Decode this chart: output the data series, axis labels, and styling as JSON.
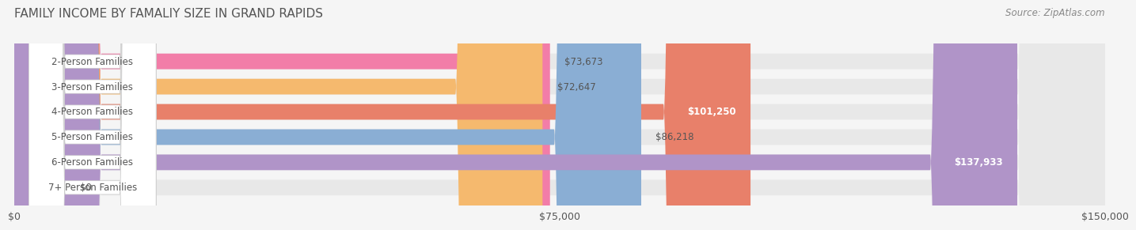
{
  "title": "FAMILY INCOME BY FAMALIY SIZE IN GRAND RAPIDS",
  "source": "Source: ZipAtlas.com",
  "categories": [
    "2-Person Families",
    "3-Person Families",
    "4-Person Families",
    "5-Person Families",
    "6-Person Families",
    "7+ Person Families"
  ],
  "values": [
    73673,
    72647,
    101250,
    86218,
    137933,
    0
  ],
  "bar_colors": [
    "#f27da8",
    "#f5b96e",
    "#e8806a",
    "#8aaed4",
    "#b094c8",
    "#7acfcf"
  ],
  "label_colors": [
    "#555555",
    "#555555",
    "#ffffff",
    "#555555",
    "#ffffff",
    "#555555"
  ],
  "value_labels": [
    "$73,673",
    "$72,647",
    "$101,250",
    "$86,218",
    "$137,933",
    "$0"
  ],
  "x_max": 150000,
  "x_ticks": [
    0,
    75000,
    150000
  ],
  "x_tick_labels": [
    "$0",
    "$75,000",
    "$150,000"
  ],
  "background_color": "#f5f5f5",
  "bar_bg_color": "#e8e8e8",
  "title_fontsize": 11,
  "source_fontsize": 8.5,
  "label_fontsize": 8.5,
  "value_fontsize": 8.5
}
